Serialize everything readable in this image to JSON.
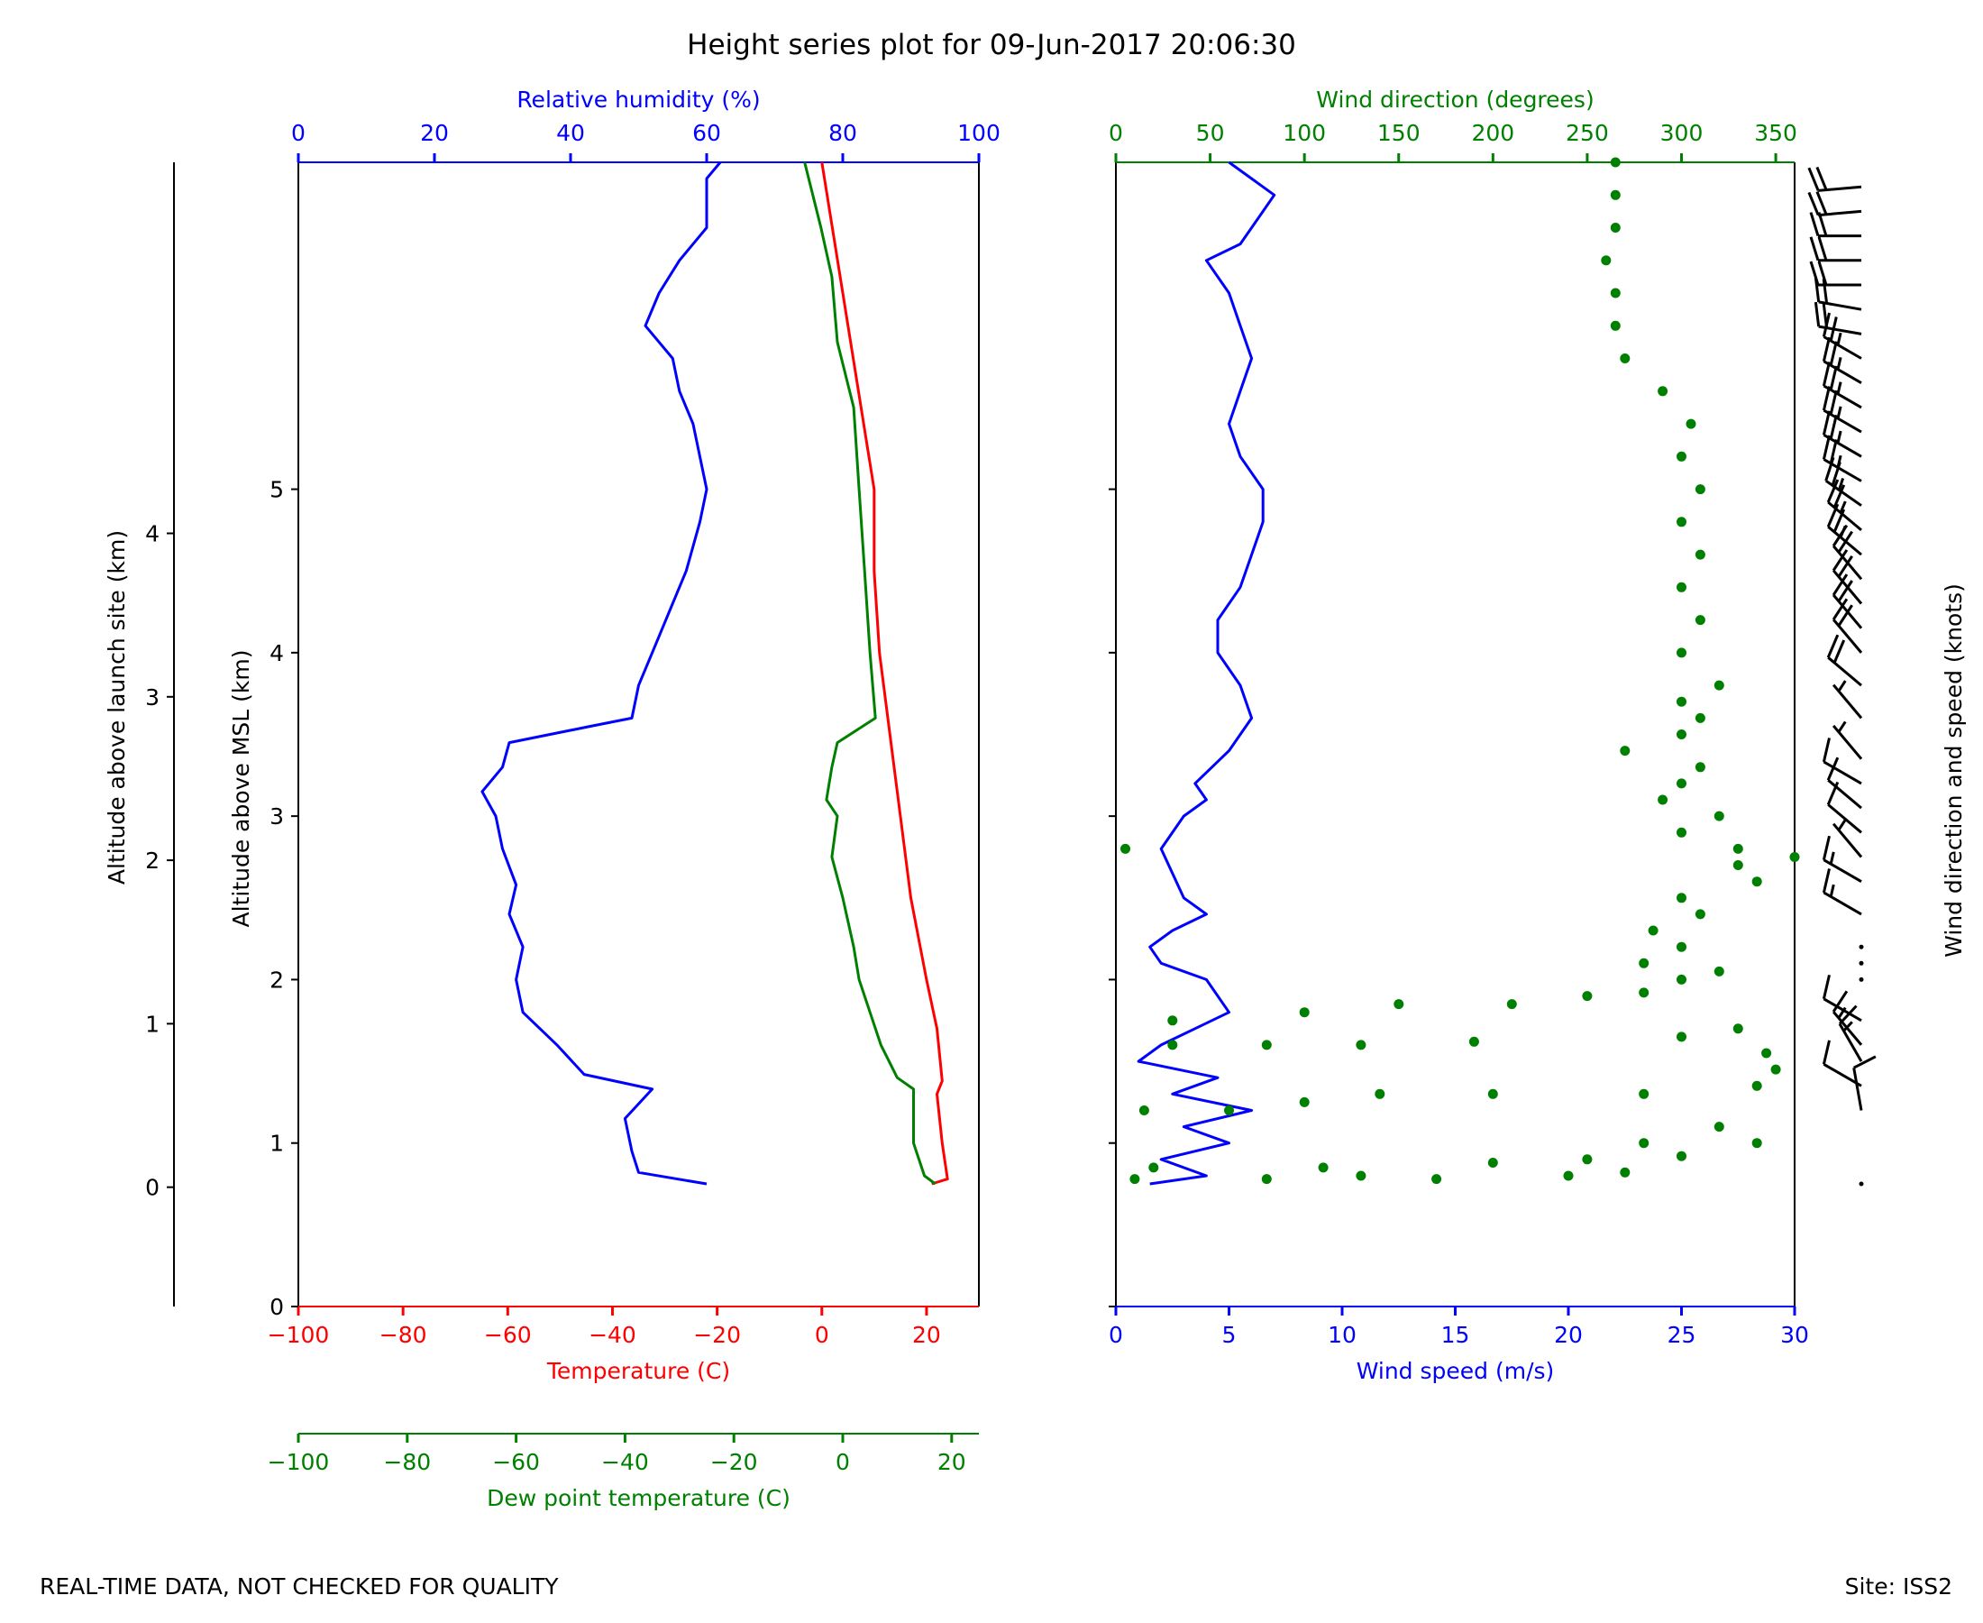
{
  "figure": {
    "title": "Height series plot for 09-Jun-2017 20:06:30",
    "footer_left": "REAL-TIME DATA, NOT CHECKED FOR QUALITY",
    "footer_right": "Site: ISS2"
  },
  "colors": {
    "axis": "#000000",
    "temperature": "#ff0000",
    "dew_point": "#008000",
    "humidity": "#0000ff",
    "wind_speed": "#0000ff",
    "wind_direction": "#008000",
    "barb": "#000000"
  },
  "chart_data": [
    {
      "type": "line",
      "panel": "thermodynamic profile",
      "title": "",
      "ylabel": "Altitude above MSL (km)",
      "ylim": [
        0,
        5
      ],
      "yticks": [
        0,
        1,
        2,
        3,
        4,
        5
      ],
      "ylabel_secondary": "Altitude above launch site (km)",
      "launch_site_elevation_km": 0.73,
      "yticks_secondary": [
        0,
        1,
        2,
        3,
        4
      ],
      "axes": {
        "temperature": {
          "label": "Temperature (C)",
          "lim": [
            -100,
            30
          ],
          "ticks": [
            -100,
            -80,
            -60,
            -40,
            -20,
            0,
            20
          ]
        },
        "humidity": {
          "label": "Relative humidity (%)",
          "lim": [
            0,
            100
          ],
          "ticks": [
            0,
            20,
            40,
            60,
            80,
            100
          ]
        },
        "dew_point": {
          "label": "Dew point temperature (C)",
          "lim": [
            -100,
            25
          ],
          "ticks": [
            -100,
            -80,
            -60,
            -40,
            -20,
            0,
            20
          ]
        }
      },
      "series": [
        {
          "name": "Temperature",
          "axis": "temperature",
          "points": [
            [
              21,
              0.75
            ],
            [
              24,
              0.78
            ],
            [
              23,
              1.0
            ],
            [
              22,
              1.3
            ],
            [
              23,
              1.38
            ],
            [
              22,
              1.7
            ],
            [
              20,
              2.0
            ],
            [
              17,
              2.5
            ],
            [
              15,
              3.0
            ],
            [
              13,
              3.5
            ],
            [
              11,
              4.0
            ],
            [
              10,
              4.5
            ],
            [
              10,
              5.0
            ],
            [
              8,
              5.4
            ],
            [
              6,
              5.8
            ],
            [
              4,
              6.2
            ],
            [
              2,
              6.6
            ],
            [
              0,
              7.0
            ]
          ]
        },
        {
          "name": "Dew point temperature",
          "axis": "dew_point",
          "points": [
            [
              17,
              0.75
            ],
            [
              15,
              0.8
            ],
            [
              13,
              1.0
            ],
            [
              13,
              1.33
            ],
            [
              10,
              1.4
            ],
            [
              7,
              1.6
            ],
            [
              5,
              1.8
            ],
            [
              3,
              2.0
            ],
            [
              2,
              2.2
            ],
            [
              0,
              2.5
            ],
            [
              -2,
              2.75
            ],
            [
              -1,
              3.0
            ],
            [
              -3,
              3.1
            ],
            [
              -2,
              3.3
            ],
            [
              -1,
              3.45
            ],
            [
              6,
              3.6
            ],
            [
              5,
              4.0
            ],
            [
              4,
              4.5
            ],
            [
              3,
              5.0
            ],
            [
              2,
              5.5
            ],
            [
              -1,
              5.9
            ],
            [
              -2,
              6.3
            ],
            [
              -4,
              6.6
            ],
            [
              -7,
              7.0
            ]
          ]
        },
        {
          "name": "Relative humidity",
          "axis": "humidity",
          "points": [
            [
              60,
              0.75
            ],
            [
              50,
              0.82
            ],
            [
              49,
              0.95
            ],
            [
              48,
              1.15
            ],
            [
              52,
              1.33
            ],
            [
              42,
              1.42
            ],
            [
              38,
              1.6
            ],
            [
              33,
              1.8
            ],
            [
              32,
              2.0
            ],
            [
              33,
              2.2
            ],
            [
              31,
              2.4
            ],
            [
              32,
              2.58
            ],
            [
              30,
              2.8
            ],
            [
              29,
              3.0
            ],
            [
              27,
              3.15
            ],
            [
              30,
              3.3
            ],
            [
              31,
              3.45
            ],
            [
              43,
              3.55
            ],
            [
              49,
              3.6
            ],
            [
              50,
              3.8
            ],
            [
              52,
              4.0
            ],
            [
              54,
              4.2
            ],
            [
              57,
              4.5
            ],
            [
              59,
              4.8
            ],
            [
              60,
              5.0
            ],
            [
              58,
              5.4
            ],
            [
              56,
              5.6
            ],
            [
              55,
              5.8
            ],
            [
              51,
              6.0
            ],
            [
              53,
              6.2
            ],
            [
              56,
              6.4
            ],
            [
              60,
              6.6
            ],
            [
              60,
              6.9
            ],
            [
              62,
              7.0
            ]
          ]
        }
      ]
    },
    {
      "type": "scatter",
      "panel": "wind profile",
      "title": "",
      "ylabel": "",
      "ylim": [
        0,
        5
      ],
      "axes": {
        "wind_speed": {
          "label": "Wind speed (m/s)",
          "lim": [
            0,
            30
          ],
          "ticks": [
            0,
            5,
            10,
            15,
            20,
            25,
            30
          ]
        },
        "wind_direction": {
          "label": "Wind direction (degrees)",
          "lim": [
            0,
            360
          ],
          "ticks": [
            0,
            50,
            100,
            150,
            200,
            250,
            300,
            350
          ]
        }
      },
      "series": [
        {
          "name": "Wind speed",
          "axis": "wind_speed",
          "points": [
            [
              1.5,
              0.75
            ],
            [
              4,
              0.8
            ],
            [
              2,
              0.9
            ],
            [
              5,
              1.0
            ],
            [
              3,
              1.1
            ],
            [
              6,
              1.2
            ],
            [
              2.5,
              1.3
            ],
            [
              4.5,
              1.4
            ],
            [
              1,
              1.5
            ],
            [
              2,
              1.6
            ],
            [
              3.5,
              1.7
            ],
            [
              5,
              1.8
            ],
            [
              4,
              2.0
            ],
            [
              2,
              2.1
            ],
            [
              1.5,
              2.2
            ],
            [
              2.5,
              2.3
            ],
            [
              4,
              2.4
            ],
            [
              3,
              2.5
            ],
            [
              2.5,
              2.65
            ],
            [
              2,
              2.8
            ],
            [
              3,
              3.0
            ],
            [
              4,
              3.1
            ],
            [
              3.5,
              3.2
            ],
            [
              5,
              3.4
            ],
            [
              6,
              3.6
            ],
            [
              5.5,
              3.8
            ],
            [
              4.5,
              4.0
            ],
            [
              4.5,
              4.2
            ],
            [
              5.5,
              4.4
            ],
            [
              6,
              4.6
            ],
            [
              6.5,
              4.8
            ],
            [
              6.5,
              5.0
            ],
            [
              5.5,
              5.2
            ],
            [
              5,
              5.4
            ],
            [
              5.5,
              5.6
            ],
            [
              6,
              5.8
            ],
            [
              5.5,
              6.0
            ],
            [
              5,
              6.2
            ],
            [
              4,
              6.4
            ],
            [
              5.5,
              6.5
            ],
            [
              6,
              6.6
            ],
            [
              6.5,
              6.7
            ],
            [
              7,
              6.8
            ],
            [
              6,
              6.9
            ],
            [
              5,
              7.0
            ]
          ]
        },
        {
          "name": "Wind direction",
          "axis": "wind_direction",
          "points": [
            [
              10,
              0.78
            ],
            [
              80,
              0.78
            ],
            [
              130,
              0.8
            ],
            [
              170,
              0.78
            ],
            [
              240,
              0.8
            ],
            [
              270,
              0.82
            ],
            [
              20,
              0.85
            ],
            [
              110,
              0.85
            ],
            [
              200,
              0.88
            ],
            [
              250,
              0.9
            ],
            [
              300,
              0.92
            ],
            [
              280,
              1.0
            ],
            [
              340,
              1.0
            ],
            [
              320,
              1.1
            ],
            [
              15,
              1.2
            ],
            [
              60,
              1.2
            ],
            [
              100,
              1.25
            ],
            [
              140,
              1.3
            ],
            [
              200,
              1.3
            ],
            [
              280,
              1.3
            ],
            [
              340,
              1.35
            ],
            [
              350,
              1.45
            ],
            [
              345,
              1.55
            ],
            [
              30,
              1.6
            ],
            [
              80,
              1.6
            ],
            [
              130,
              1.6
            ],
            [
              190,
              1.62
            ],
            [
              300,
              1.65
            ],
            [
              330,
              1.7
            ],
            [
              30,
              1.75
            ],
            [
              100,
              1.8
            ],
            [
              150,
              1.85
            ],
            [
              210,
              1.85
            ],
            [
              250,
              1.9
            ],
            [
              280,
              1.92
            ],
            [
              300,
              2.0
            ],
            [
              320,
              2.05
            ],
            [
              280,
              2.1
            ],
            [
              300,
              2.2
            ],
            [
              285,
              2.3
            ],
            [
              310,
              2.4
            ],
            [
              300,
              2.5
            ],
            [
              340,
              2.6
            ],
            [
              330,
              2.7
            ],
            [
              360,
              2.75
            ],
            [
              330,
              2.8
            ],
            [
              5,
              2.8
            ],
            [
              300,
              2.9
            ],
            [
              320,
              3.0
            ],
            [
              290,
              3.1
            ],
            [
              300,
              3.2
            ],
            [
              310,
              3.3
            ],
            [
              270,
              3.4
            ],
            [
              300,
              3.5
            ],
            [
              310,
              3.6
            ],
            [
              300,
              3.7
            ],
            [
              320,
              3.8
            ],
            [
              300,
              4.0
            ],
            [
              310,
              4.2
            ],
            [
              300,
              4.4
            ],
            [
              310,
              4.6
            ],
            [
              300,
              4.8
            ],
            [
              310,
              5.0
            ],
            [
              300,
              5.2
            ],
            [
              305,
              5.4
            ],
            [
              290,
              5.6
            ],
            [
              270,
              5.8
            ],
            [
              265,
              6.0
            ],
            [
              265,
              6.2
            ],
            [
              260,
              6.4
            ],
            [
              265,
              6.6
            ],
            [
              265,
              6.8
            ],
            [
              265,
              7.0
            ]
          ]
        }
      ]
    },
    {
      "type": "barbs",
      "panel": "wind barbs",
      "ylabel": "Wind direction and speed (knots)",
      "barbs": [
        {
          "alt": 0.75,
          "dir": 0,
          "speed": 0
        },
        {
          "alt": 1.2,
          "dir": 350,
          "speed": 10
        },
        {
          "alt": 1.35,
          "dir": 300,
          "speed": 10
        },
        {
          "alt": 1.5,
          "dir": 330,
          "speed": 15
        },
        {
          "alt": 1.6,
          "dir": 320,
          "speed": 15
        },
        {
          "alt": 1.75,
          "dir": 300,
          "speed": 10
        },
        {
          "alt": 2.0,
          "dir": 0,
          "speed": 0
        },
        {
          "alt": 2.1,
          "dir": 0,
          "speed": 0
        },
        {
          "alt": 2.2,
          "dir": 0,
          "speed": 0
        },
        {
          "alt": 2.4,
          "dir": 300,
          "speed": 15
        },
        {
          "alt": 2.6,
          "dir": 300,
          "speed": 15
        },
        {
          "alt": 2.75,
          "dir": 320,
          "speed": 5
        },
        {
          "alt": 2.9,
          "dir": 310,
          "speed": 10
        },
        {
          "alt": 3.05,
          "dir": 310,
          "speed": 10
        },
        {
          "alt": 3.2,
          "dir": 300,
          "speed": 10
        },
        {
          "alt": 3.35,
          "dir": 320,
          "speed": 5
        },
        {
          "alt": 3.6,
          "dir": 320,
          "speed": 5
        },
        {
          "alt": 3.8,
          "dir": 310,
          "speed": 20
        },
        {
          "alt": 4.0,
          "dir": 320,
          "speed": 20
        },
        {
          "alt": 4.15,
          "dir": 320,
          "speed": 20
        },
        {
          "alt": 4.3,
          "dir": 320,
          "speed": 20
        },
        {
          "alt": 4.45,
          "dir": 320,
          "speed": 20
        },
        {
          "alt": 4.6,
          "dir": 310,
          "speed": 25
        },
        {
          "alt": 4.75,
          "dir": 310,
          "speed": 25
        },
        {
          "alt": 4.9,
          "dir": 305,
          "speed": 25
        },
        {
          "alt": 5.05,
          "dir": 300,
          "speed": 25
        },
        {
          "alt": 5.2,
          "dir": 300,
          "speed": 25
        },
        {
          "alt": 5.35,
          "dir": 300,
          "speed": 25
        },
        {
          "alt": 5.5,
          "dir": 300,
          "speed": 25
        },
        {
          "alt": 5.65,
          "dir": 300,
          "speed": 25
        },
        {
          "alt": 5.8,
          "dir": 300,
          "speed": 25
        },
        {
          "alt": 5.95,
          "dir": 280,
          "speed": 20
        },
        {
          "alt": 6.1,
          "dir": 280,
          "speed": 20
        },
        {
          "alt": 6.25,
          "dir": 270,
          "speed": 20
        },
        {
          "alt": 6.4,
          "dir": 270,
          "speed": 20
        },
        {
          "alt": 6.55,
          "dir": 270,
          "speed": 20
        },
        {
          "alt": 6.7,
          "dir": 265,
          "speed": 20
        },
        {
          "alt": 6.85,
          "dir": 265,
          "speed": 20
        }
      ]
    }
  ]
}
